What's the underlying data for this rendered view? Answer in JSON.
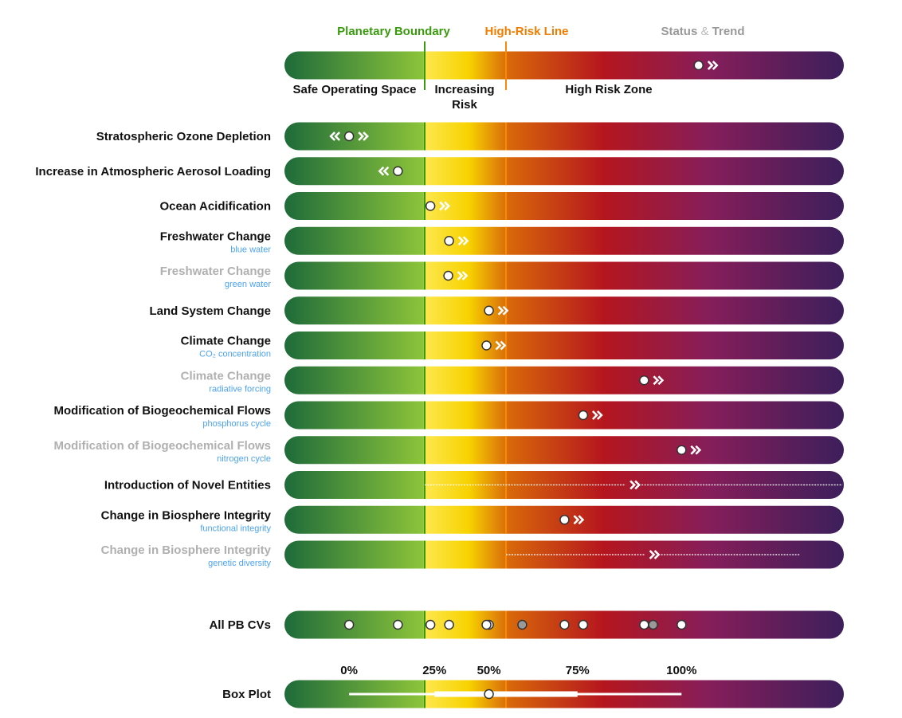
{
  "colors": {
    "planetary_boundary": "#3a9a0e",
    "high_risk_line": "#f58a07",
    "status_trend": "#999999",
    "label_active": "#111111",
    "label_muted": "#b0b0b0",
    "sublabel": "#4da3f0",
    "gradient": [
      "#1e6b3a",
      "#8cc43a",
      "#fde74c",
      "#f7d200",
      "#d8680a",
      "#b5161e",
      "#851e5a",
      "#3c1f5b"
    ],
    "marker_fill": "#ffffff",
    "marker_fill_muted": "#999999"
  },
  "header": {
    "planetary_boundary": "Planetary Boundary",
    "high_risk_line": "High-Risk Line",
    "status_trend_a": "Status",
    "status_trend_amp": "&",
    "status_trend_b": "Trend"
  },
  "legend_bar": {
    "status": 4.37,
    "trend": "increasing",
    "zones": {
      "safe": "Safe Operating Space",
      "increasing_1": "Increasing",
      "increasing_2": "Risk",
      "high": "High Risk Zone"
    }
  },
  "chart_data": {
    "type": "status-bar",
    "planetary_boundary": 1.0,
    "high_risk_line": 2.0,
    "rows": [
      {
        "label": "Stratospheric Ozone Depletion",
        "sublabel": "",
        "muted": false,
        "status": 0.07,
        "trend": "both"
      },
      {
        "label": "Increase in Atmospheric Aerosol Loading",
        "sublabel": "",
        "muted": false,
        "status": 0.67,
        "trend": "decreasing"
      },
      {
        "label": "Ocean Acidification",
        "sublabel": "",
        "muted": false,
        "status": 1.07,
        "trend": "increasing"
      },
      {
        "label": "Freshwater Change",
        "sublabel": "blue water",
        "muted": false,
        "status": 1.3,
        "trend": "increasing"
      },
      {
        "label": "Freshwater Change",
        "sublabel": "green water",
        "muted": true,
        "status": 1.29,
        "trend": "increasing"
      },
      {
        "label": "Land System Change",
        "sublabel": "",
        "muted": false,
        "status": 1.79,
        "trend": "increasing"
      },
      {
        "label": "Climate Change",
        "sublabel": "CO₂ concentration",
        "muted": false,
        "status": 1.76,
        "trend": "increasing"
      },
      {
        "label": "Climate Change",
        "sublabel": "radiative forcing",
        "muted": true,
        "status": 3.7,
        "trend": "increasing"
      },
      {
        "label": "Modification of Biogeochemical Flows",
        "sublabel": "phosphorus cycle",
        "muted": false,
        "status": 2.95,
        "trend": "increasing"
      },
      {
        "label": "Modification of Biogeochemical Flows",
        "sublabel": "nitrogen cycle",
        "muted": true,
        "status": 4.16,
        "trend": "increasing"
      },
      {
        "label": "Introduction of Novel Entities",
        "sublabel": "",
        "muted": false,
        "status": null,
        "range": [
          1.0,
          6.14
        ],
        "trend_at": 3.57,
        "trend": "increasing"
      },
      {
        "label": "Change in Biosphere Integrity",
        "sublabel": "functional integrity",
        "muted": false,
        "status": 2.72,
        "trend": "increasing"
      },
      {
        "label": "Change in Biosphere Integrity",
        "sublabel": "genetic diversity",
        "muted": true,
        "status": null,
        "range": [
          2.0,
          5.62
        ],
        "trend_at": 3.81,
        "trend": "increasing"
      }
    ],
    "all_cvs": {
      "label": "All PB CVs",
      "points": [
        {
          "v": 0.07,
          "muted": false
        },
        {
          "v": 0.67,
          "muted": false
        },
        {
          "v": 1.07,
          "muted": false
        },
        {
          "v": 1.3,
          "muted": false
        },
        {
          "v": 1.79,
          "muted": false
        },
        {
          "v": 1.76,
          "muted": false
        },
        {
          "v": 2.2,
          "muted": true
        },
        {
          "v": 2.72,
          "muted": false
        },
        {
          "v": 2.95,
          "muted": false
        },
        {
          "v": 3.7,
          "muted": false
        },
        {
          "v": 3.81,
          "muted": true
        },
        {
          "v": 4.16,
          "muted": false
        }
      ]
    },
    "box_plot": {
      "label": "Box Plot",
      "min": 0.07,
      "q1": 1.12,
      "median": 1.79,
      "q3": 2.88,
      "max": 4.16,
      "tick_labels": [
        "0%",
        "25%",
        "50%",
        "75%",
        "100%"
      ]
    }
  }
}
